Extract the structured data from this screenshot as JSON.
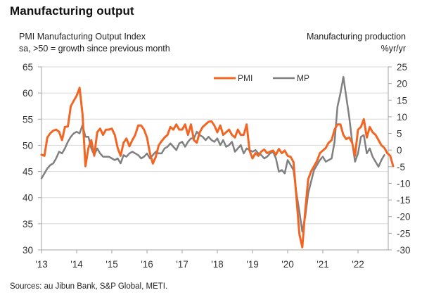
{
  "chart_data": {
    "type": "line",
    "title": "Manufacturing output",
    "left_axis": {
      "label_line1": "PMI Manufacturing Output Index",
      "label_line2": "sa, >50 = growth since previous month",
      "ylim": [
        30,
        65
      ],
      "ticks": [
        30,
        35,
        40,
        45,
        50,
        55,
        60,
        65
      ]
    },
    "right_axis": {
      "label_line1": "Manufacturing production",
      "label_line2": "%yr/yr",
      "ylim": [
        -30,
        25
      ],
      "ticks": [
        -30,
        -25,
        -20,
        -15,
        -10,
        -5,
        0,
        5,
        10,
        15,
        20,
        25
      ]
    },
    "x_axis": {
      "start": "2013-01",
      "tick_labels": [
        "'13",
        "'14",
        "'15",
        "'16",
        "'17",
        "'18",
        "'19",
        "'20",
        "'21",
        "'22"
      ]
    },
    "grid": true,
    "legend_position": "top-right",
    "series": [
      {
        "name": "PMI",
        "axis": "left",
        "color": "#F26522",
        "start": "2013-01",
        "values": [
          48.2,
          48.0,
          51.5,
          52.3,
          52.8,
          53.0,
          52.6,
          51.0,
          53.5,
          53.6,
          57.5,
          58.5,
          59.5,
          61.0,
          56.0,
          46.0,
          49.5,
          51.0,
          48.0,
          52.5,
          53.2,
          52.0,
          53.0,
          53.0,
          53.2,
          52.0,
          49.5,
          48.0,
          50.5,
          51.3,
          49.8,
          51.0,
          52.0,
          53.8,
          53.8,
          53.0,
          51.5,
          48.5,
          46.5,
          47.8,
          50.0,
          50.8,
          51.5,
          52.0,
          53.5,
          53.0,
          54.0,
          53.0,
          53.0,
          54.0,
          52.0,
          54.0,
          51.0,
          50.5,
          52.5,
          53.5,
          54.0,
          54.5,
          54.6,
          53.8,
          52.5,
          53.8,
          52.0,
          52.5,
          53.0,
          52.0,
          51.5,
          53.0,
          52.0,
          52.0,
          54.0,
          49.0,
          47.5,
          48.5,
          48.0,
          48.8,
          49.2,
          48.5,
          48.8,
          49.0,
          48.2,
          49.3,
          48.5,
          49.0,
          48.0,
          47.8,
          46.8,
          40.0,
          33.0,
          30.5,
          37.5,
          43.5,
          45.0,
          46.0,
          47.0,
          48.5,
          49.0,
          49.5,
          50.5,
          51.0,
          53.0,
          54.0,
          54.0,
          52.0,
          51.2,
          51.5,
          50.5,
          48.0,
          53.0,
          53.5,
          55.0,
          51.5,
          53.5,
          52.5,
          52.0,
          51.0,
          50.0,
          49.5,
          48.5,
          48.0,
          46.0
        ]
      },
      {
        "name": "MP",
        "axis": "right",
        "color": "#808080",
        "start": "2013-01",
        "values": [
          -8.5,
          -7.0,
          -5.5,
          -4.5,
          -4.0,
          -2.5,
          -0.5,
          -1.0,
          0.5,
          2.5,
          4.0,
          5.0,
          5.5,
          5.0,
          7.5,
          4.0,
          4.0,
          0.5,
          -1.5,
          0.5,
          -1.0,
          -2.0,
          -2.0,
          -2.0,
          -2.5,
          -3.0,
          -2.5,
          -4.0,
          -1.5,
          -2.0,
          -1.0,
          -0.5,
          -1.0,
          -1.5,
          -2.5,
          -2.0,
          -1.0,
          -2.5,
          -1.5,
          -0.5,
          -1.0,
          -1.0,
          0.5,
          1.0,
          2.0,
          1.0,
          0.0,
          2.0,
          2.5,
          1.0,
          2.5,
          3.5,
          3.5,
          5.5,
          4.5,
          4.0,
          3.0,
          4.0,
          3.0,
          2.5,
          3.5,
          1.5,
          3.0,
          1.0,
          1.5,
          2.5,
          -0.5,
          0.5,
          1.5,
          -1.0,
          0.5,
          0.0,
          -0.5,
          0.0,
          -1.0,
          -1.5,
          -2.5,
          -2.0,
          -1.0,
          -0.5,
          -2.5,
          -6.5,
          -6.0,
          -7.0,
          -3.0,
          -4.5,
          -6.0,
          -13.0,
          -18.5,
          -24.5,
          -20.0,
          -13.0,
          -9.5,
          -6.0,
          -4.5,
          -3.0,
          -2.0,
          -3.5,
          -3.0,
          -2.5,
          2.5,
          13.0,
          17.0,
          22.0,
          16.0,
          10.0,
          2.5,
          -3.5,
          -1.0,
          4.0,
          4.5,
          -1.0,
          0.5,
          -2.0,
          -3.5,
          -5.0,
          -3.0,
          -1.5
        ]
      }
    ]
  },
  "footer": {
    "sources": "Sources: au Jibun Bank, S&P Global, METI."
  }
}
